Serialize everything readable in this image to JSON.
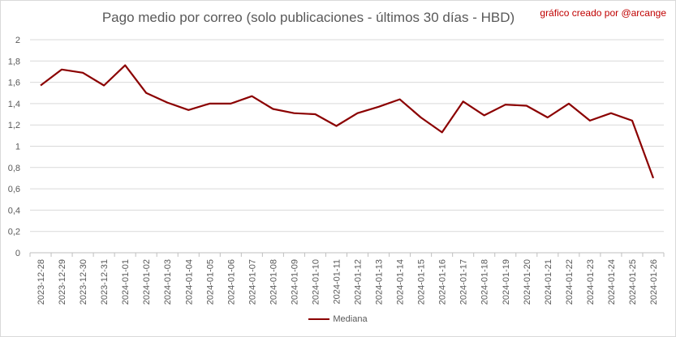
{
  "chart_data": {
    "type": "line",
    "title": "Pago medio por correo (solo publicaciones - últimos 30 días - HBD)",
    "credit": "gráfico creado por @arcange",
    "xlabel": "",
    "ylabel": "",
    "ylim": [
      0,
      2
    ],
    "yticks": [
      "0",
      "0,2",
      "0,4",
      "0,6",
      "0,8",
      "1",
      "1,2",
      "1,4",
      "1,6",
      "1,8",
      "2"
    ],
    "grid": true,
    "legend_position": "bottom",
    "line_color": "#8b0000",
    "categories": [
      "2023-12-28",
      "2023-12-29",
      "2023-12-30",
      "2023-12-31",
      "2024-01-01",
      "2024-01-02",
      "2024-01-03",
      "2024-01-04",
      "2024-01-05",
      "2024-01-06",
      "2024-01-07",
      "2024-01-08",
      "2024-01-09",
      "2024-01-10",
      "2024-01-11",
      "2024-01-12",
      "2024-01-13",
      "2024-01-14",
      "2024-01-15",
      "2024-01-16",
      "2024-01-17",
      "2024-01-18",
      "2024-01-19",
      "2024-01-20",
      "2024-01-21",
      "2024-01-22",
      "2024-01-23",
      "2024-01-24",
      "2024-01-25",
      "2024-01-26"
    ],
    "series": [
      {
        "name": "Mediana",
        "values": [
          1.57,
          1.72,
          1.69,
          1.57,
          1.76,
          1.5,
          1.41,
          1.34,
          1.4,
          1.4,
          1.47,
          1.35,
          1.31,
          1.3,
          1.19,
          1.31,
          1.37,
          1.44,
          1.27,
          1.13,
          1.42,
          1.29,
          1.39,
          1.38,
          1.27,
          1.4,
          1.24,
          1.31,
          1.24,
          0.7
        ]
      }
    ]
  }
}
